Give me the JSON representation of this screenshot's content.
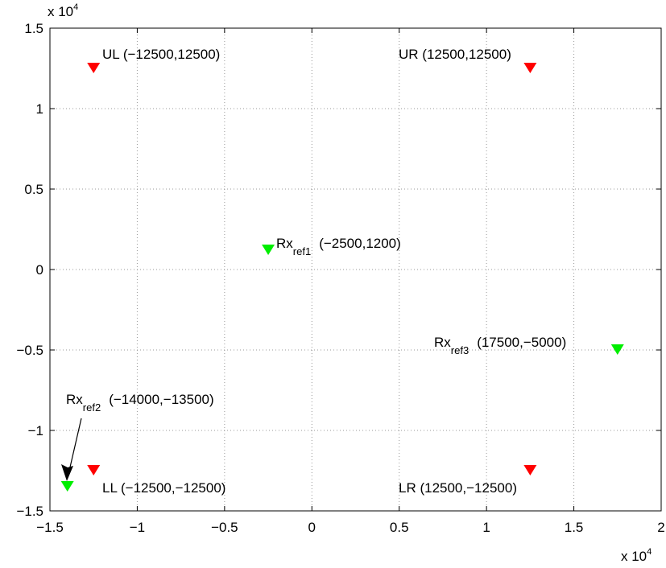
{
  "chart_data": {
    "type": "scatter",
    "xlim": [
      -15000,
      20000
    ],
    "ylim": [
      -15000,
      15000
    ],
    "grid": true,
    "grid_style": "dotted",
    "x_ticks": [
      -15000,
      -10000,
      -5000,
      0,
      5000,
      10000,
      15000,
      20000
    ],
    "y_ticks": [
      -15000,
      -10000,
      -5000,
      0,
      5000,
      10000,
      15000
    ],
    "x_tick_labels": [
      "−1.5",
      "−1",
      "−0.5",
      "0",
      "0.5",
      "1",
      "1.5",
      "2"
    ],
    "y_tick_labels": [
      "−1.5",
      "−1",
      "−0.5",
      "0",
      "0.5",
      "1",
      "1.5"
    ],
    "x_exponent": {
      "base": "x 10",
      "power": "4"
    },
    "y_exponent": {
      "base": "x 10",
      "power": "4"
    },
    "marker": "triangle-down",
    "colors": {
      "corner": "#ff0000",
      "reference": "#00ee00",
      "arrow": "#000000",
      "grid": "#999999"
    },
    "points": [
      {
        "id": "ul",
        "group": "corner",
        "x": -12500,
        "y": 12500,
        "label": "UL (−12500,12500)"
      },
      {
        "id": "ur",
        "group": "corner",
        "x": 12500,
        "y": 12500,
        "label": "UR (12500,12500)"
      },
      {
        "id": "ll",
        "group": "corner",
        "x": -12500,
        "y": -12500,
        "label": "LL (−12500,−12500)"
      },
      {
        "id": "lr",
        "group": "corner",
        "x": 12500,
        "y": -12500,
        "label": "LR (12500,−12500)"
      },
      {
        "id": "rx1",
        "group": "reference",
        "x": -2500,
        "y": 1200,
        "label_main": "Rx",
        "label_sub": "ref1",
        "label_coords": "(−2500,1200)"
      },
      {
        "id": "rx3",
        "group": "reference",
        "x": 17500,
        "y": -5000,
        "label_main": "Rx",
        "label_sub": "ref3",
        "label_coords": "(17500,−5000)"
      },
      {
        "id": "rx2",
        "group": "reference",
        "x": -14000,
        "y": -13500,
        "label_main": "Rx",
        "label_sub": "ref2",
        "label_coords": "(−14000,−13500)"
      }
    ]
  }
}
